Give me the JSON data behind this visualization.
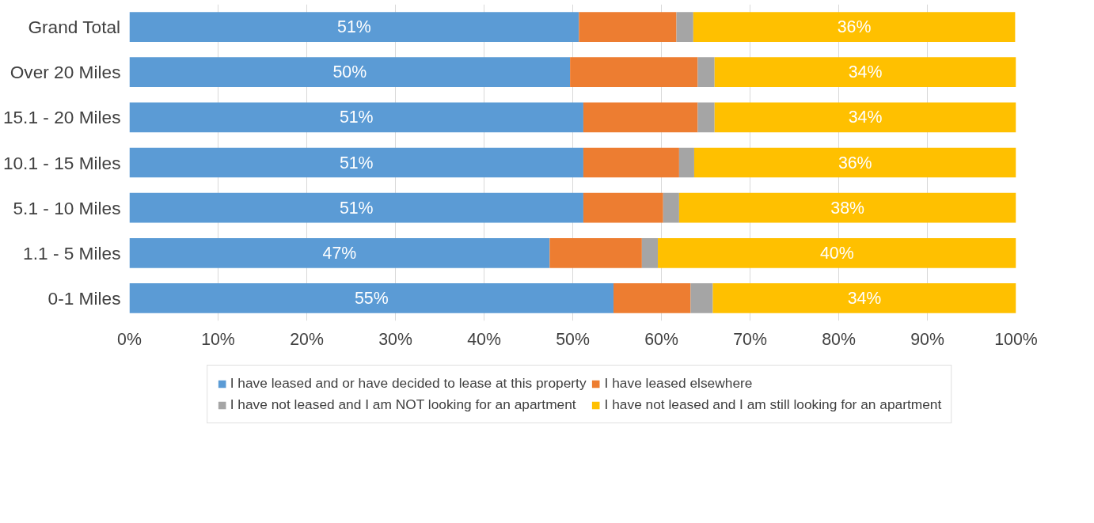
{
  "chart_data": {
    "type": "bar",
    "orientation": "horizontal",
    "stacked": true,
    "categories": [
      "Grand Total",
      "Over 20 Miles",
      "15.1 - 20 Miles",
      "10.1 - 15 Miles",
      "5.1 - 10 Miles",
      "1.1 - 5 Miles",
      "0-1 Miles"
    ],
    "series": [
      {
        "name": "I have leased and or have decided to lease at this property",
        "color": "#5b9bd5",
        "values": [
          50.7,
          49.7,
          51.2,
          51.2,
          51.2,
          47.4,
          54.6
        ],
        "value_labels": [
          "51%",
          "50%",
          "51%",
          "51%",
          "51%",
          "47%",
          "55%"
        ]
      },
      {
        "name": "I have leased elsewhere",
        "color": "#ed7d31",
        "values": [
          11.0,
          14.4,
          12.9,
          10.8,
          9.0,
          10.4,
          8.7
        ]
      },
      {
        "name": "I have not leased and I am NOT looking for an apartment",
        "color": "#a5a5a5",
        "values": [
          1.9,
          1.9,
          1.9,
          1.7,
          1.8,
          1.8,
          2.5
        ]
      },
      {
        "name": "I have not leased and I am still looking for an apartment",
        "color": "#ffc000",
        "values": [
          36.3,
          34.0,
          34.0,
          36.3,
          38.0,
          40.4,
          34.2
        ],
        "value_labels": [
          "36%",
          "34%",
          "34%",
          "36%",
          "38%",
          "40%",
          "34%"
        ]
      }
    ],
    "xlim": [
      0,
      100
    ],
    "xticks": [
      {
        "value": 0,
        "label": "0%"
      },
      {
        "value": 10,
        "label": "10%"
      },
      {
        "value": 20,
        "label": "20%"
      },
      {
        "value": 30,
        "label": "30%"
      },
      {
        "value": 40,
        "label": "40%"
      },
      {
        "value": 50,
        "label": "50%"
      },
      {
        "value": 60,
        "label": "60%"
      },
      {
        "value": 70,
        "label": "70%"
      },
      {
        "value": 80,
        "label": "80%"
      },
      {
        "value": 90,
        "label": "90%"
      },
      {
        "value": 100,
        "label": "100%"
      }
    ],
    "grid": "x",
    "legend": "bottom"
  }
}
